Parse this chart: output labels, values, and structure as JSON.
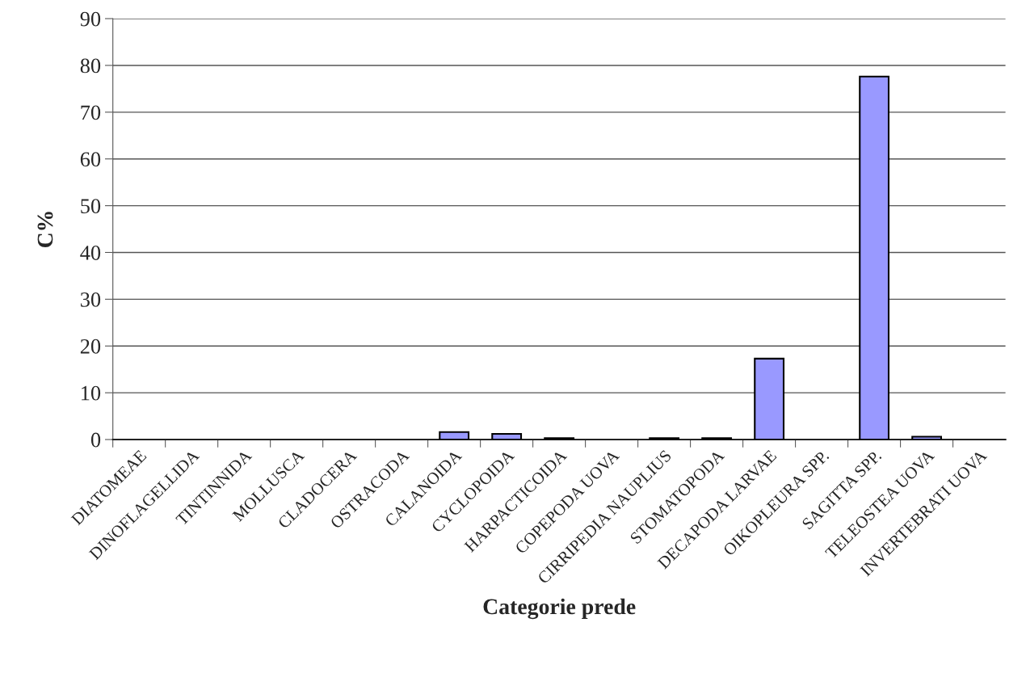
{
  "chart_data": {
    "type": "bar",
    "xlabel": "Categorie prede",
    "ylabel": "C%",
    "categories": [
      "DIATOMEAE",
      "DINOFLAGELLIDA",
      "TINTINNIDA",
      "MOLLUSCA",
      "CLADOCERA",
      "OSTRACODA",
      "CALANOIDA",
      "CYCLOPOIDA",
      "HARPACTICOIDA",
      "COPEPODA UOVA",
      "CIRRIPEDIA NAUPLIUS",
      "STOMATOPODA",
      "DECAPODA LARVAE",
      "OIKOPLEURA SPP.",
      "SAGITTA SPP.",
      "TELEOSTEA UOVA",
      "INVERTEBRATI UOVA"
    ],
    "values": [
      0,
      0,
      0,
      0,
      0,
      0,
      1.6,
      1.2,
      0.3,
      0,
      0.3,
      0.3,
      17.3,
      0,
      77.6,
      0.6,
      0
    ],
    "color": "#9999ff",
    "ylim": [
      0,
      90
    ],
    "yticks": [
      0,
      10,
      20,
      30,
      40,
      50,
      60,
      70,
      80,
      90
    ],
    "grid": "y",
    "legend": false
  }
}
